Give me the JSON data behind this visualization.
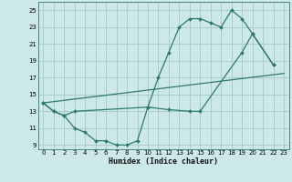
{
  "xlabel": "Humidex (Indice chaleur)",
  "bg_color": "#cce8e8",
  "grid_color": "#aacccc",
  "line_color": "#2d7a6a",
  "xlim": [
    -0.5,
    23.5
  ],
  "ylim": [
    8.5,
    26
  ],
  "xticks": [
    0,
    1,
    2,
    3,
    4,
    5,
    6,
    7,
    8,
    9,
    10,
    11,
    12,
    13,
    14,
    15,
    16,
    17,
    18,
    19,
    20,
    21,
    22,
    23
  ],
  "yticks": [
    9,
    11,
    13,
    15,
    17,
    19,
    21,
    23,
    25
  ],
  "line1_x": [
    0,
    1,
    2,
    3,
    10,
    11,
    12,
    13,
    14,
    15,
    16,
    17,
    18,
    19,
    20,
    22
  ],
  "line1_y": [
    14,
    13,
    12.5,
    13,
    13.5,
    17,
    20,
    23,
    24,
    24,
    23.5,
    23,
    25,
    24,
    22.2,
    18.5
  ],
  "line2_x": [
    0,
    23
  ],
  "line2_y": [
    14,
    17.5
  ],
  "line3_x": [
    0,
    1,
    2,
    3,
    4,
    5,
    6,
    7,
    8,
    9,
    10,
    12,
    14,
    15,
    19,
    20,
    22
  ],
  "line3_y": [
    14,
    13,
    12.5,
    11,
    10.5,
    9.5,
    9.5,
    9,
    9,
    9.5,
    13.5,
    13.2,
    13,
    13,
    20,
    22.2,
    18.5
  ]
}
